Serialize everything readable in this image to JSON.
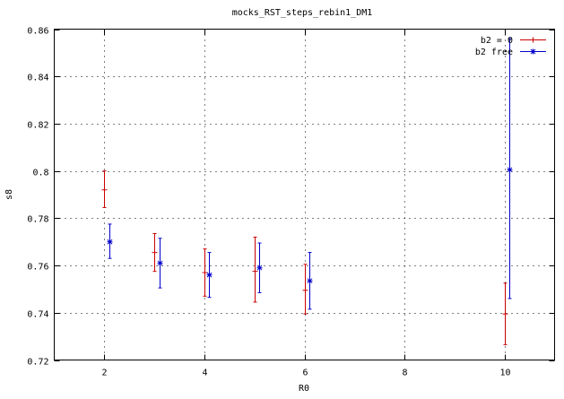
{
  "chart_data": {
    "type": "scatter",
    "title": "mocks_RST_steps_rebin1_DM1",
    "xlabel": "R0",
    "ylabel": "s8",
    "xlim": [
      1,
      11
    ],
    "ylim": [
      0.72,
      0.86
    ],
    "xticks": [
      2,
      4,
      6,
      8,
      10
    ],
    "xtick_labels": [
      "2",
      "4",
      "6",
      "8",
      "10"
    ],
    "yticks": [
      0.72,
      0.74,
      0.76,
      0.78,
      0.8,
      0.82,
      0.84,
      0.86
    ],
    "ytick_labels": [
      "0.72",
      "0.74",
      "0.76",
      "0.78",
      "0.8",
      "0.82",
      "0.84",
      "0.86"
    ],
    "grid": true,
    "legend_position": "top-right",
    "series": [
      {
        "name": "b2 = 0",
        "color": "#cc0000",
        "marker": "plus",
        "points": [
          {
            "x": 2.0,
            "y": 0.792,
            "ylo": 0.7845,
            "yhi": 0.8
          },
          {
            "x": 3.0,
            "y": 0.7655,
            "ylo": 0.7575,
            "yhi": 0.7735
          },
          {
            "x": 4.0,
            "y": 0.757,
            "ylo": 0.747,
            "yhi": 0.767
          },
          {
            "x": 5.0,
            "y": 0.7575,
            "ylo": 0.7445,
            "yhi": 0.772
          },
          {
            "x": 6.0,
            "y": 0.7495,
            "ylo": 0.7395,
            "yhi": 0.7605
          },
          {
            "x": 10.0,
            "y": 0.7395,
            "ylo": 0.7265,
            "yhi": 0.7525
          }
        ]
      },
      {
        "name": "b2 free",
        "color": "#0000cc",
        "marker": "star",
        "points": [
          {
            "x": 2.1,
            "y": 0.77,
            "ylo": 0.763,
            "yhi": 0.7775
          },
          {
            "x": 3.1,
            "y": 0.761,
            "ylo": 0.7505,
            "yhi": 0.7715
          },
          {
            "x": 4.1,
            "y": 0.756,
            "ylo": 0.7465,
            "yhi": 0.7655
          },
          {
            "x": 5.1,
            "y": 0.759,
            "ylo": 0.7485,
            "yhi": 0.7695
          },
          {
            "x": 6.1,
            "y": 0.7535,
            "ylo": 0.7415,
            "yhi": 0.7655
          },
          {
            "x": 10.1,
            "y": 0.8005,
            "ylo": 0.746,
            "yhi": 0.856
          }
        ]
      }
    ]
  }
}
